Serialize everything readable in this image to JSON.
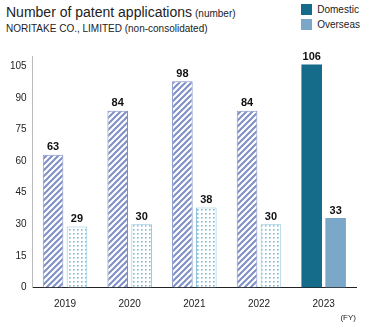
{
  "chart_data": {
    "type": "bar",
    "title": "Number of patent applications",
    "y_label": "(number)",
    "subtitle": "NORITAKE CO., LIMITED (non-consolidated)",
    "x_label": "(FY)",
    "categories": [
      "2019",
      "2020",
      "2021",
      "2022",
      "2023"
    ],
    "series": [
      {
        "name": "Domestic",
        "color": "#156b8a",
        "values": [
          63,
          84,
          98,
          84,
          106
        ]
      },
      {
        "name": "Overseas",
        "color": "#7ba7c9",
        "values": [
          29,
          30,
          38,
          30,
          33
        ]
      }
    ],
    "ylim": [
      0,
      110
    ],
    "yticks": [
      0,
      15,
      30,
      45,
      60,
      75,
      90,
      105
    ],
    "grid": false,
    "legend": "upper right",
    "data_labels": true
  }
}
